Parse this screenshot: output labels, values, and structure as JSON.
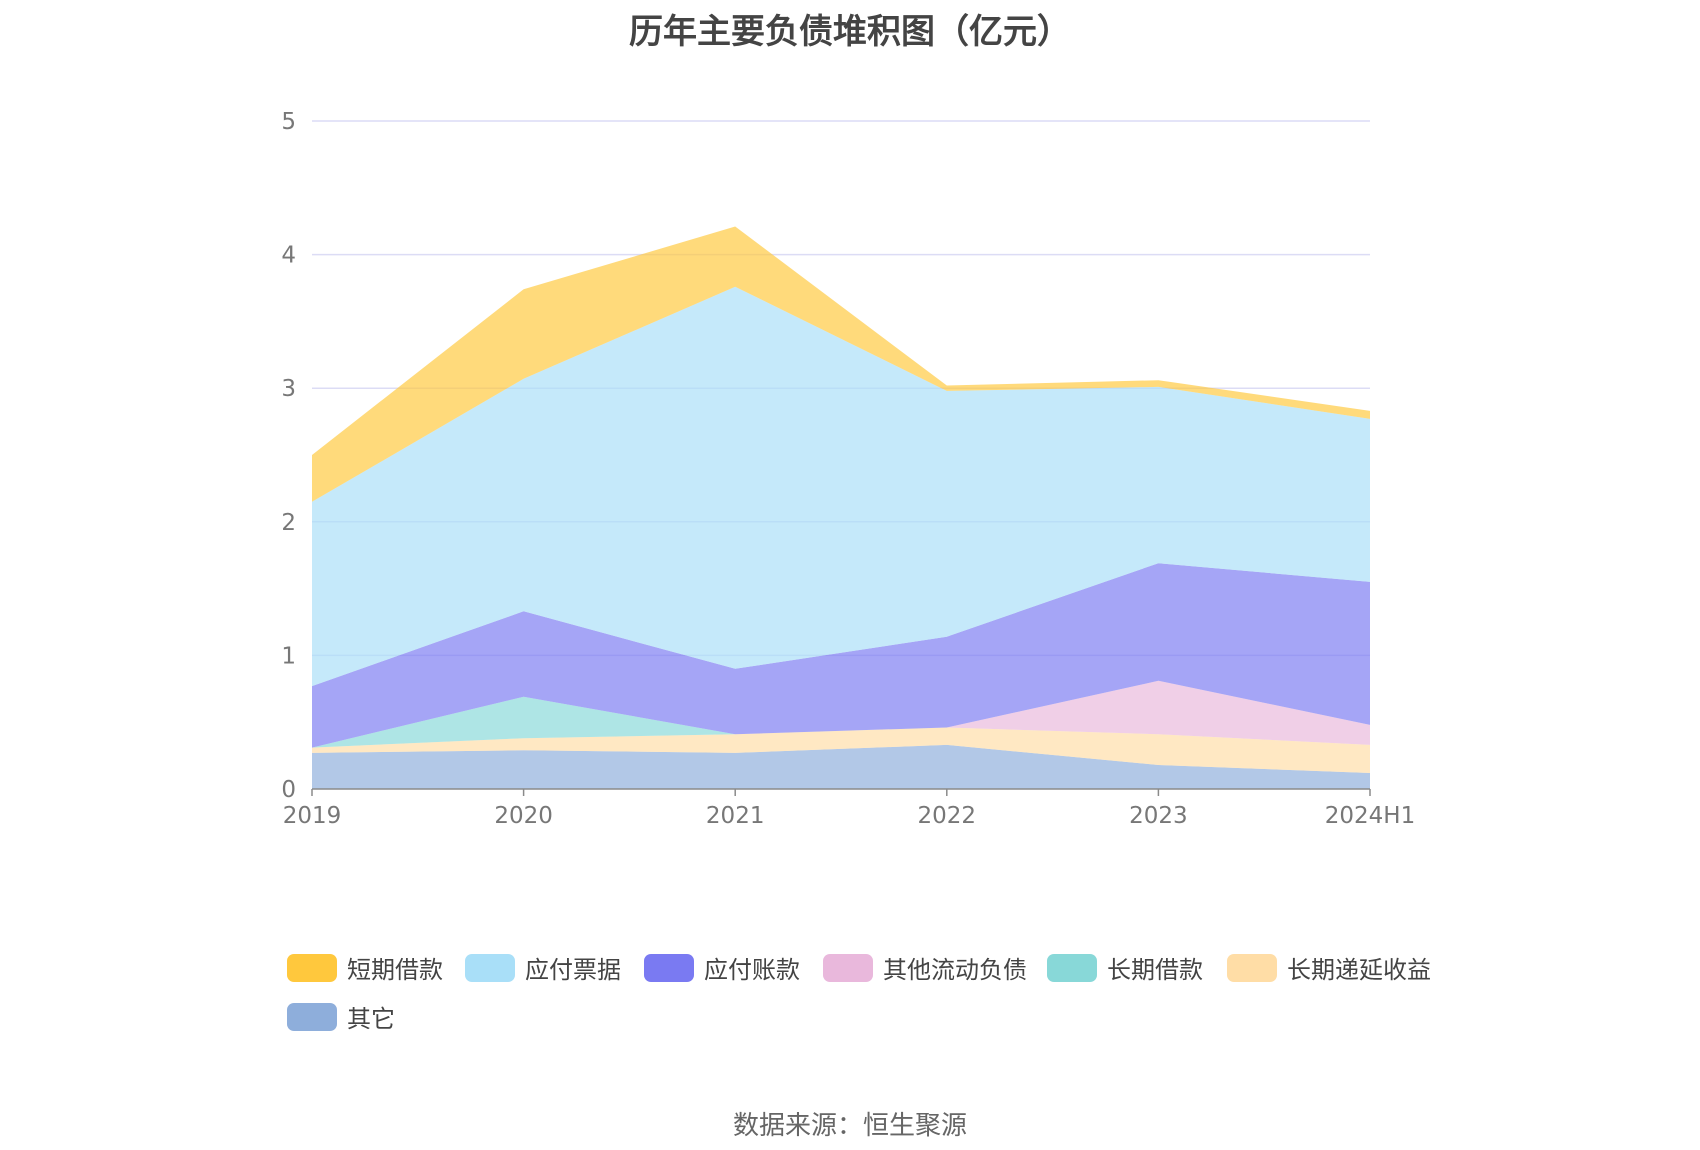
{
  "chart_data": {
    "type": "area",
    "stacked": true,
    "title": "历年主要负债堆积图（亿元）",
    "categories": [
      "2019",
      "2020",
      "2021",
      "2022",
      "2023",
      "2024H1"
    ],
    "ylim": [
      0,
      5
    ],
    "yticks": [
      "0",
      "1",
      "2",
      "3",
      "4",
      "5"
    ],
    "grid": true,
    "legend_position": "bottom",
    "series": [
      {
        "name": "其它",
        "color": "#8eaedb",
        "values": [
          0.27,
          0.29,
          0.27,
          0.33,
          0.18,
          0.12
        ]
      },
      {
        "name": "长期递延收益",
        "color": "#ffdda6",
        "values": [
          0.04,
          0.09,
          0.14,
          0.13,
          0.23,
          0.21
        ]
      },
      {
        "name": "长期借款",
        "color": "#88d8d8",
        "values": [
          0.0,
          0.31,
          0.0,
          0.0,
          0.0,
          0.0
        ]
      },
      {
        "name": "其他流动负债",
        "color": "#e9b8dc",
        "values": [
          0.0,
          0.0,
          0.0,
          0.0,
          0.4,
          0.15
        ]
      },
      {
        "name": "应付账款",
        "color": "#7a7af2",
        "values": [
          0.46,
          0.64,
          0.49,
          0.68,
          0.88,
          1.07
        ]
      },
      {
        "name": "应付票据",
        "color": "#a9dff8",
        "values": [
          1.38,
          1.74,
          2.86,
          1.84,
          1.32,
          1.22
        ]
      },
      {
        "name": "短期借款",
        "color": "#ffc83d",
        "values": [
          0.35,
          0.67,
          0.45,
          0.04,
          0.05,
          0.06
        ]
      }
    ],
    "legend_order": [
      "短期借款",
      "应付票据",
      "应付账款",
      "其他流动负债",
      "长期借款",
      "长期递延收益",
      "其它"
    ]
  },
  "source": "数据来源：恒生聚源"
}
